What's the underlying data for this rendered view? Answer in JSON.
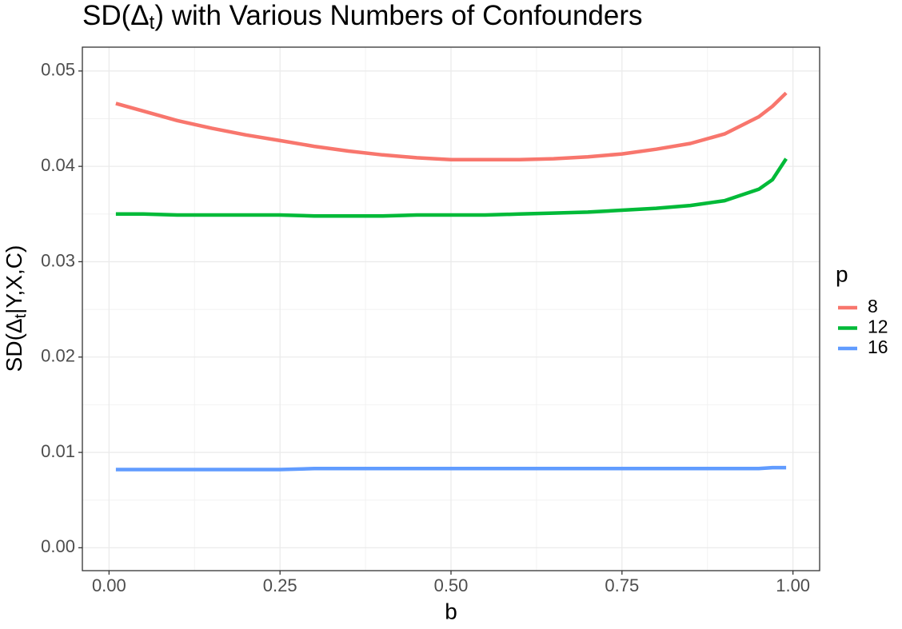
{
  "chart_data": {
    "type": "line",
    "title": [
      "SD(Δ",
      "t",
      ") with Various Numbers of Confounders"
    ],
    "x_label": "b",
    "y_label": [
      "SD(Δ",
      "t",
      "|Y,X,C)"
    ],
    "legend_title": "p",
    "legend_position": "right",
    "grid": true,
    "x": [
      0.01,
      0.05,
      0.1,
      0.15,
      0.2,
      0.25,
      0.3,
      0.35,
      0.4,
      0.45,
      0.5,
      0.55,
      0.6,
      0.65,
      0.7,
      0.75,
      0.8,
      0.85,
      0.9,
      0.95,
      0.97,
      0.99
    ],
    "series": [
      {
        "name": "8",
        "color": "#F8766D",
        "values": [
          0.0466,
          0.0458,
          0.0448,
          0.044,
          0.0433,
          0.0427,
          0.0421,
          0.0416,
          0.0412,
          0.0409,
          0.0407,
          0.0407,
          0.0407,
          0.0408,
          0.041,
          0.0413,
          0.0418,
          0.0424,
          0.0434,
          0.0452,
          0.0463,
          0.0477
        ]
      },
      {
        "name": "12",
        "color": "#00BA38",
        "values": [
          0.035,
          0.035,
          0.0349,
          0.0349,
          0.0349,
          0.0349,
          0.0348,
          0.0348,
          0.0348,
          0.0349,
          0.0349,
          0.0349,
          0.035,
          0.0351,
          0.0352,
          0.0354,
          0.0356,
          0.0359,
          0.0364,
          0.0376,
          0.0386,
          0.0408
        ]
      },
      {
        "name": "16",
        "color": "#619CFF",
        "values": [
          0.0082,
          0.0082,
          0.0082,
          0.0082,
          0.0082,
          0.0082,
          0.0083,
          0.0083,
          0.0083,
          0.0083,
          0.0083,
          0.0083,
          0.0083,
          0.0083,
          0.0083,
          0.0083,
          0.0083,
          0.0083,
          0.0083,
          0.0083,
          0.0084,
          0.0084
        ]
      }
    ],
    "xlim": [
      -0.039,
      1.039
    ],
    "xticks": [
      {
        "value": 0,
        "label": "0.00"
      },
      {
        "value": 0.25,
        "label": "0.25"
      },
      {
        "value": 0.5,
        "label": "0.50"
      },
      {
        "value": 0.75,
        "label": "0.75"
      },
      {
        "value": 1,
        "label": "1.00"
      }
    ],
    "ylim": [
      -0.0024,
      0.0525
    ],
    "yticks": [
      {
        "value": 0,
        "label": "0.00"
      },
      {
        "value": 0.01,
        "label": "0.01"
      },
      {
        "value": 0.02,
        "label": "0.02"
      },
      {
        "value": 0.03,
        "label": "0.03"
      },
      {
        "value": 0.04,
        "label": "0.04"
      },
      {
        "value": 0.05,
        "label": "0.05"
      }
    ]
  }
}
